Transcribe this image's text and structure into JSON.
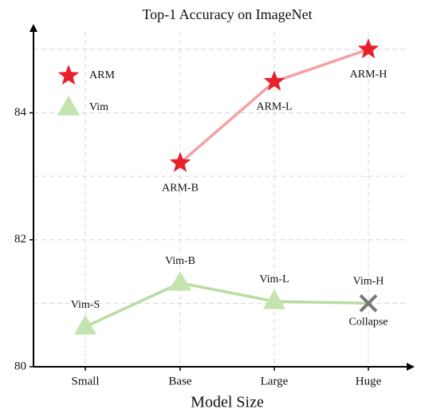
{
  "chart_data": {
    "type": "line",
    "title": "Top-1 Accuracy on ImageNet",
    "x_label": "Model Size",
    "categories": [
      "Small",
      "Base",
      "Large",
      "Huge"
    ],
    "series": [
      {
        "name": "ARM",
        "color": "#f4a0a6",
        "marker_color": "#e8202a",
        "marker": "star",
        "values": [
          null,
          83.21,
          84.49,
          85.0
        ],
        "point_labels": [
          null,
          "ARM-B",
          "ARM-L",
          "ARM-H"
        ]
      },
      {
        "name": "Vim",
        "color": "#b9dca0",
        "marker_color": "#c5e3b0",
        "marker": "triangle",
        "values": [
          80.63,
          81.32,
          81.03,
          81.0
        ],
        "point_labels": [
          "Vim-S",
          "Vim-B",
          "Vim-L",
          "Vim-H"
        ]
      }
    ],
    "annotations": [
      {
        "text": "Collapse",
        "series": 1,
        "index": 3,
        "color": "#777777"
      }
    ],
    "ylim": [
      80,
      85.4
    ],
    "yticks": [
      80,
      82,
      84
    ],
    "minor_yticks": [
      81,
      83,
      85
    ],
    "grid": true,
    "legend": "upper left"
  }
}
